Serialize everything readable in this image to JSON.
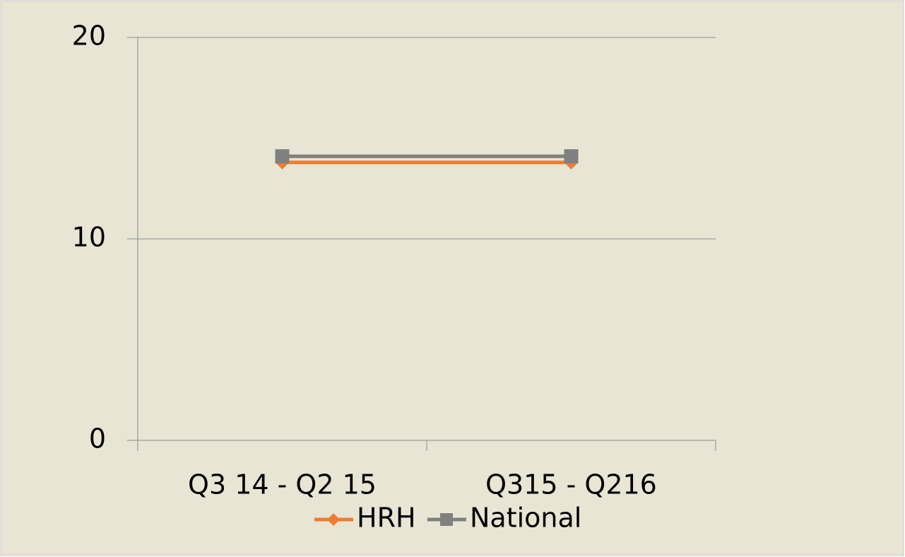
{
  "chart_data": {
    "type": "line",
    "categories": [
      "Q3 14 - Q2 15",
      "Q315 - Q216"
    ],
    "series": [
      {
        "name": "HRH",
        "color": "#ed7d31",
        "marker": "diamond",
        "values": [
          13.8,
          13.8
        ]
      },
      {
        "name": "National",
        "color": "#808080",
        "marker": "square",
        "values": [
          14.1,
          14.1
        ]
      }
    ],
    "ylim": [
      0,
      20
    ],
    "yticks": [
      0,
      10,
      20
    ],
    "grid": true,
    "legend": "bottom"
  }
}
